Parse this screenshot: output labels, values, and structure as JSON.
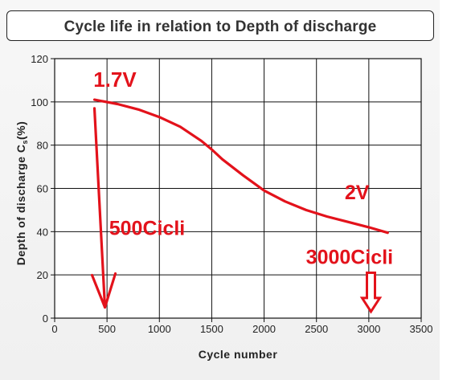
{
  "chart_data": {
    "type": "line",
    "title": "Cycle life in relation to Depth of discharge",
    "xlabel": "Cycle number",
    "ylabel_main": "Depth of discharge C",
    "ylabel_sub": "s",
    "ylabel_unit": "(%)",
    "xlim": [
      0,
      3500
    ],
    "ylim": [
      0,
      120
    ],
    "xticks": [
      "0",
      "500",
      "1000",
      "1500",
      "2000",
      "2500",
      "3000",
      "3500"
    ],
    "xtick_values": [
      0,
      500,
      1000,
      1500,
      2000,
      2500,
      3000,
      3500
    ],
    "yticks": [
      "0",
      "20",
      "40",
      "60",
      "80",
      "100",
      "120"
    ],
    "ytick_values": [
      0,
      20,
      40,
      60,
      80,
      100,
      120
    ],
    "grid": true,
    "line_color": "#e3121b",
    "series": [
      {
        "x": [
          380,
          600,
          800,
          1000,
          1200,
          1400,
          1500,
          1600,
          1800,
          2000,
          2200,
          2400,
          2600,
          2800,
          3000,
          3180
        ],
        "y": [
          101,
          99,
          96.5,
          93,
          88.5,
          82,
          78,
          73.5,
          66,
          59,
          54,
          50,
          47,
          44.5,
          42,
          39.5
        ]
      }
    ],
    "annotations": [
      {
        "text": "1.7V",
        "x": 370,
        "y": 107,
        "size": 26
      },
      {
        "text": "500Cicli",
        "x": 520,
        "y": 38.5,
        "size": 25
      },
      {
        "text": "2V",
        "x": 2770,
        "y": 55,
        "size": 25
      },
      {
        "text": "3000Cicli",
        "x": 2400,
        "y": 25,
        "size": 25
      }
    ],
    "arrows": [
      {
        "kind": "line",
        "from": [
          380,
          97
        ],
        "to": [
          480,
          5
        ]
      },
      {
        "kind": "block",
        "at": 3020,
        "from": 21,
        "to": 3
      }
    ]
  }
}
